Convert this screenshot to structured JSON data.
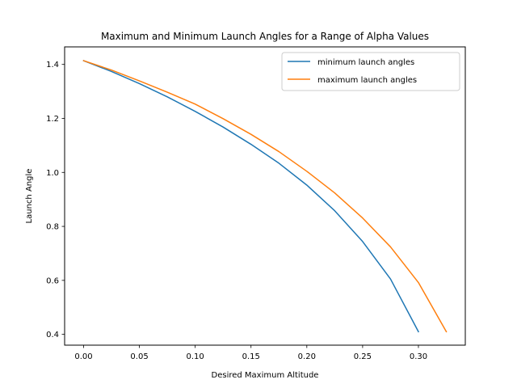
{
  "chart_data": {
    "type": "line",
    "title": "Maximum and Minimum Launch Angles for a Range of Alpha Values",
    "xlabel": "Desired Maximum Altitude",
    "ylabel": "Launch Angle",
    "xlim": [
      -0.017,
      0.342
    ],
    "ylim": [
      0.36,
      1.465
    ],
    "xticks": [
      0.0,
      0.05,
      0.1,
      0.15,
      0.2,
      0.25,
      0.3
    ],
    "xtick_labels": [
      "0.00",
      "0.05",
      "0.10",
      "0.15",
      "0.20",
      "0.25",
      "0.30"
    ],
    "yticks": [
      0.4,
      0.6,
      0.8,
      1.0,
      1.2,
      1.4
    ],
    "ytick_labels": [
      "0.4",
      "0.6",
      "0.8",
      "1.0",
      "1.2",
      "1.4"
    ],
    "grid": false,
    "legend_position": "top-right",
    "series": [
      {
        "name": "minimum launch angles",
        "color": "#1f77b4",
        "x": [
          0.0,
          0.025,
          0.05,
          0.075,
          0.1,
          0.125,
          0.15,
          0.175,
          0.2,
          0.225,
          0.25,
          0.275,
          0.3
        ],
        "y": [
          1.414,
          1.374,
          1.329,
          1.28,
          1.226,
          1.168,
          1.104,
          1.034,
          0.953,
          0.858,
          0.744,
          0.605,
          0.41
        ]
      },
      {
        "name": "maximum launch angles",
        "color": "#ff7f0e",
        "x": [
          0.0,
          0.025,
          0.05,
          0.075,
          0.1,
          0.125,
          0.15,
          0.175,
          0.2,
          0.225,
          0.25,
          0.275,
          0.3,
          0.325
        ],
        "y": [
          1.414,
          1.379,
          1.339,
          1.297,
          1.253,
          1.199,
          1.141,
          1.077,
          1.004,
          0.924,
          0.831,
          0.724,
          0.592,
          0.41
        ]
      }
    ]
  }
}
